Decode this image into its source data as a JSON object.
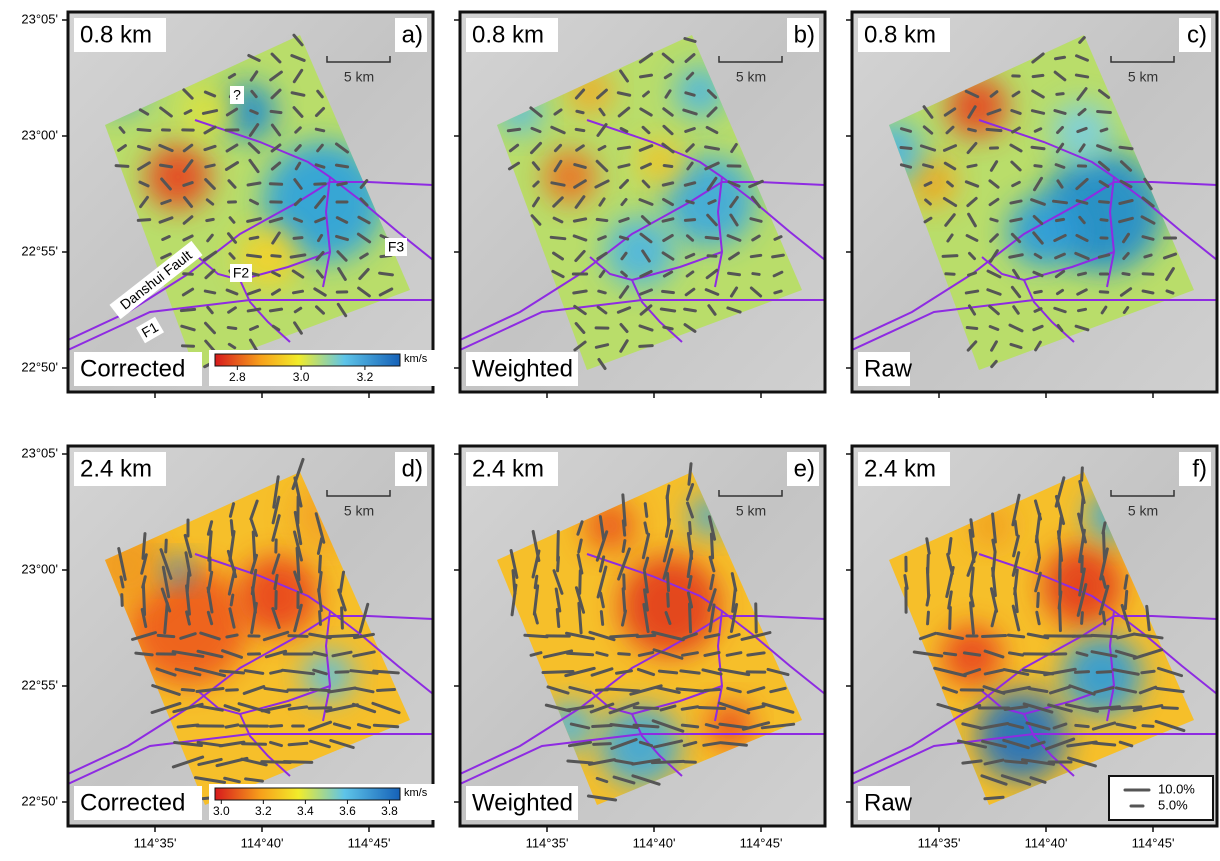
{
  "axes": {
    "lat_labels": [
      "23°05'",
      "23°00'",
      "22°55'",
      "22°50'"
    ],
    "lon_labels": [
      "114°35'",
      "114°40'",
      "114°45'"
    ]
  },
  "panels": [
    {
      "depth": "0.8 km",
      "letter": "a)",
      "method": "Corrected",
      "scale_bar": "5 km"
    },
    {
      "depth": "0.8 km",
      "letter": "b)",
      "method": "Weighted",
      "scale_bar": "5 km"
    },
    {
      "depth": "0.8 km",
      "letter": "c)",
      "method": "Raw",
      "scale_bar": "5 km"
    },
    {
      "depth": "2.4 km",
      "letter": "d)",
      "method": "Corrected",
      "scale_bar": "5 km"
    },
    {
      "depth": "2.4 km",
      "letter": "e)",
      "method": "Weighted",
      "scale_bar": "5 km"
    },
    {
      "depth": "2.4 km",
      "letter": "f)",
      "method": "Raw",
      "scale_bar": "5 km"
    }
  ],
  "annotations": {
    "question": "?",
    "fault_name": "Danshui Fault",
    "faults": [
      "F1",
      "F2",
      "F3"
    ]
  },
  "colorbars": [
    {
      "range": [
        2.73,
        3.31
      ],
      "ticks": [
        2.8,
        {
          "value": 3,
          "label": "3.0"
        },
        3.2
      ],
      "unit": "km/s"
    },
    {
      "range": [
        2.97,
        3.85
      ],
      "ticks": [
        {
          "value": 3,
          "label": "3.0"
        },
        3.2,
        3.4,
        3.6,
        3.8
      ],
      "unit": "km/s"
    }
  ],
  "legend": {
    "items": [
      {
        "value": 10,
        "label": "10.0%"
      },
      {
        "value": 5,
        "label": "5.0%"
      }
    ]
  }
}
